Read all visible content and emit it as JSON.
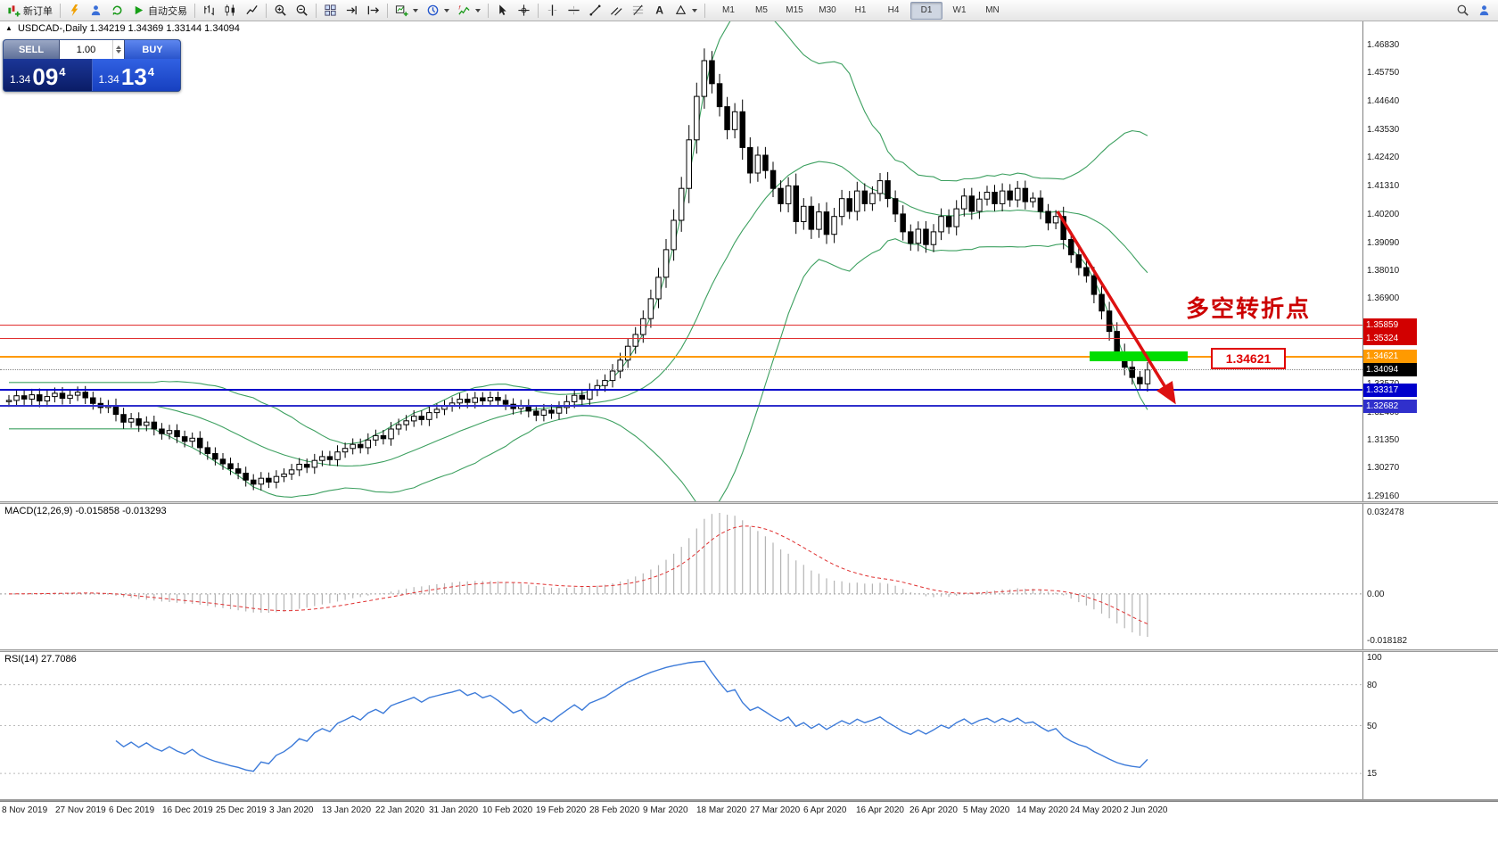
{
  "toolbar": {
    "new_order": "新订单",
    "auto_trading": "自动交易",
    "timeframes": [
      "M1",
      "M5",
      "M15",
      "M30",
      "H1",
      "H4",
      "D1",
      "W1",
      "MN"
    ],
    "active_timeframe": "D1"
  },
  "chart_header": {
    "triangle": "▲",
    "symbol": "USDCAD-,Daily",
    "open": "1.34219",
    "high": "1.34369",
    "low": "1.33144",
    "close": "1.34094"
  },
  "trade_widget": {
    "sell_label": "SELL",
    "buy_label": "BUY",
    "volume": "1.00",
    "sell_small": "1.34",
    "sell_big": "09",
    "sell_sup": "4",
    "buy_small": "1.34",
    "buy_big": "13",
    "buy_sup": "4"
  },
  "annotations": {
    "turning_point_text": "多空转折点",
    "price_box_label": "1.34621",
    "zone_green": "#00dd00",
    "annotation_red": "#dd1111"
  },
  "price_axis": {
    "range": {
      "max": 1.4683,
      "min": 1.2916
    },
    "gridlines": [
      "1.46830",
      "1.45750",
      "1.44640",
      "1.43530",
      "1.42420",
      "1.41310",
      "1.40200",
      "1.39090",
      "1.38010",
      "1.36900",
      "1.35790",
      "1.34680",
      "1.33570",
      "1.32460",
      "1.31350",
      "1.30270",
      "1.29160"
    ],
    "tags": [
      {
        "label": "1.35859",
        "value": 1.35859,
        "bg": "#d20000",
        "line_color": "#e03030",
        "line_style": "solid",
        "thickness": 1
      },
      {
        "label": "1.35324",
        "value": 1.35324,
        "bg": "#d20000",
        "line_color": "#e03030",
        "line_style": "solid",
        "thickness": 1
      },
      {
        "label": "1.34621",
        "value": 1.34621,
        "bg": "#ff9a00",
        "line_color": "#ff9a00",
        "line_style": "solid",
        "thickness": 2
      },
      {
        "label": "1.34094",
        "value": 1.34094,
        "bg": "#000000",
        "line_color": "#888888",
        "line_style": "dotted",
        "thickness": 1
      },
      {
        "label": "1.33317",
        "value": 1.33317,
        "bg": "#0000cc",
        "line_color": "#0000cc",
        "line_style": "solid",
        "thickness": 2
      },
      {
        "label": "1.32682",
        "value": 1.32682,
        "bg": "#3030cc",
        "line_color": "#3030cc",
        "line_style": "solid",
        "thickness": 2
      }
    ]
  },
  "macd_panel": {
    "label": "MACD(12,26,9) -0.015858 -0.013293",
    "scale_max": "0.032478",
    "scale_zero": "0.00",
    "scale_min": "-0.018182"
  },
  "rsi_panel": {
    "label": "RSI(14) 27.7086",
    "levels": [
      "100",
      "80",
      "50",
      "15"
    ]
  },
  "time_axis": [
    "8 Nov 2019",
    "27 Nov 2019",
    "6 Dec 2019",
    "16 Dec 2019",
    "25 Dec 2019",
    "3 Jan 2020",
    "13 Jan 2020",
    "22 Jan 2020",
    "31 Jan 2020",
    "10 Feb 2020",
    "19 Feb 2020",
    "28 Feb 2020",
    "9 Mar 2020",
    "18 Mar 2020",
    "27 Mar 2020",
    "6 Apr 2020",
    "16 Apr 2020",
    "26 Apr 2020",
    "5 May 2020",
    "14 May 2020",
    "24 May 2020",
    "2 Jun 2020"
  ],
  "chart_data": {
    "type": "candlestick",
    "symbol": "USDCAD",
    "period": "Daily",
    "indicators": {
      "bollinger_period": 20,
      "bollinger_deviation": 2,
      "macd": [
        12,
        26,
        9
      ],
      "rsi_period": 14
    },
    "closes": [
      1.329,
      1.3308,
      1.3295,
      1.3312,
      1.3288,
      1.3305,
      1.3318,
      1.3298,
      1.331,
      1.3322,
      1.33,
      1.3278,
      1.3262,
      1.327,
      1.3235,
      1.3205,
      1.3218,
      1.3192,
      1.3205,
      1.3178,
      1.316,
      1.3172,
      1.3148,
      1.313,
      1.3142,
      1.3105,
      1.3082,
      1.306,
      1.3042,
      1.3022,
      1.3005,
      1.2978,
      1.2962,
      1.2985,
      1.297,
      1.2992,
      1.3002,
      1.3018,
      1.304,
      1.3028,
      1.3055,
      1.307,
      1.3058,
      1.3088,
      1.3102,
      1.3118,
      1.3105,
      1.3135,
      1.3152,
      1.314,
      1.3178,
      1.3195,
      1.321,
      1.3228,
      1.3215,
      1.3242,
      1.3255,
      1.3268,
      1.328,
      1.3295,
      1.3282,
      1.33,
      1.3288,
      1.3302,
      1.329,
      1.3275,
      1.3258,
      1.327,
      1.3248,
      1.3232,
      1.3252,
      1.324,
      1.3262,
      1.3285,
      1.331,
      1.3295,
      1.333,
      1.3348,
      1.3368,
      1.3405,
      1.3448,
      1.3502,
      1.3548,
      1.361,
      1.3688,
      1.3772,
      1.388,
      1.3995,
      1.412,
      1.431,
      1.448,
      1.462,
      1.453,
      1.444,
      1.435,
      1.442,
      1.428,
      1.418,
      1.425,
      1.419,
      1.412,
      1.406,
      1.413,
      1.399,
      1.405,
      1.396,
      1.4028,
      1.394,
      1.401,
      1.408,
      1.403,
      1.411,
      1.406,
      1.41,
      1.415,
      1.408,
      1.402,
      1.395,
      1.3905,
      1.396,
      1.39,
      1.395,
      1.401,
      1.397,
      1.404,
      1.409,
      1.403,
      1.4078,
      1.4105,
      1.406,
      1.411,
      1.4075,
      1.412,
      1.4068,
      1.4082,
      1.403,
      1.3985,
      1.401,
      1.392,
      1.386,
      1.381,
      1.3778,
      1.3705,
      1.364,
      1.356,
      1.348,
      1.342,
      1.338,
      1.3355,
      1.34094
    ]
  }
}
